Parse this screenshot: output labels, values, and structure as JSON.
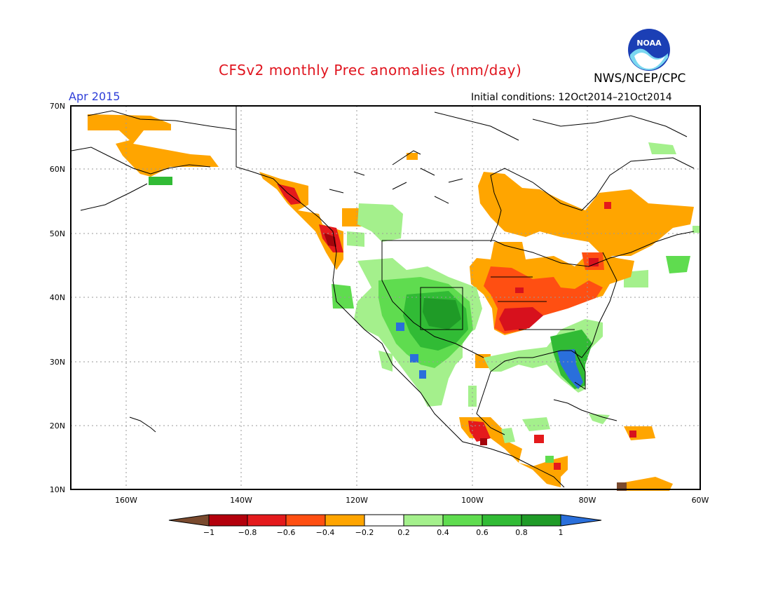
{
  "header": {
    "title": "CFSv2 monthly Prec anomalies (mm/day)",
    "month": "Apr 2015",
    "initial_conditions": "Initial conditions: 12Oct2014–21Oct2014",
    "agency": "NWS/NCEP/CPC",
    "logo_text": "NOAA"
  },
  "axes": {
    "lat_labels": [
      "70N",
      "60N",
      "50N",
      "40N",
      "30N",
      "20N",
      "10N"
    ],
    "lon_labels": [
      "160W",
      "140W",
      "120W",
      "100W",
      "80W",
      "60W"
    ]
  },
  "colorbar": {
    "labels": [
      "−1",
      "−0.8",
      "−0.6",
      "−0.4",
      "−0.2",
      "0.2",
      "0.4",
      "0.6",
      "0.8",
      "1"
    ],
    "colors": [
      "#7a4a2e",
      "#b3000c",
      "#e41a1c",
      "#ff4f12",
      "#ffa500",
      "#ffffff",
      "#a4f08c",
      "#5fdc4f",
      "#31bb35",
      "#1f9b27",
      "#2a6fdb"
    ]
  },
  "anomaly_colors": {
    "orange": "#ffa500",
    "red_orange": "#ff4f12",
    "red": "#d7111d",
    "dark_red": "#a3050c",
    "light_green": "#a4f08c",
    "green": "#5fdc4f",
    "mid_green": "#31bb35",
    "dark_green": "#1f9b27",
    "blue": "#2a6fdb",
    "brown": "#7a4a2e"
  }
}
